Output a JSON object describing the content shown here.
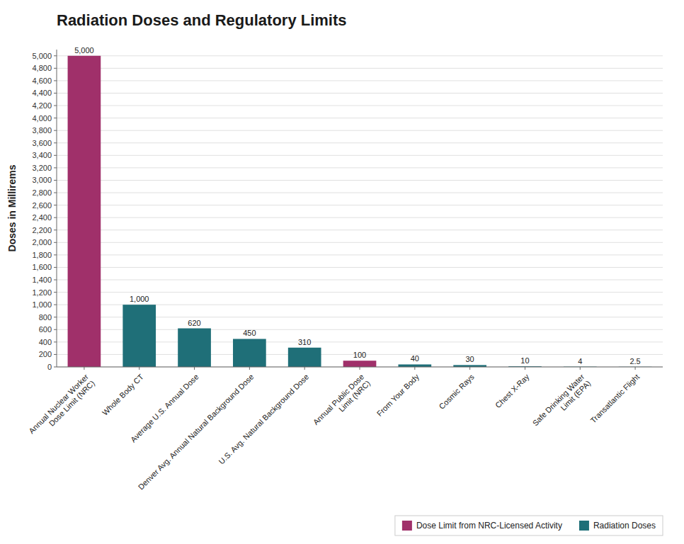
{
  "chart_data": {
    "type": "bar",
    "title": "Radiation Doses and Regulatory Limits",
    "ylabel": "Doses in Millirems",
    "categories": [
      "Annual Nuclear Worker\nDose Limit (NRC)",
      "Whole Body CT",
      "Average U.S. Annual Dose",
      "Denver Avg. Annual Natural Background Dose",
      "U.S. Avg. Natural Background Dose",
      "Annual Public Dose\nLimit (NRC)",
      "From Your Body",
      "Cosmic Rays",
      "Chest X-Ray",
      "Safe Drinking Water\nLimit (EPA)",
      "Transatlantic Flight"
    ],
    "series": [
      {
        "name": "Dose Limit from NRC-Licensed Activity",
        "color": "#a0306a",
        "values": [
          5000,
          null,
          null,
          null,
          null,
          100,
          null,
          null,
          null,
          null,
          null
        ],
        "value_labels": [
          "5,000",
          null,
          null,
          null,
          null,
          "100",
          null,
          null,
          null,
          null,
          null
        ]
      },
      {
        "name": "Radiation Doses",
        "color": "#1f6f78",
        "values": [
          null,
          1000,
          620,
          450,
          310,
          null,
          40,
          30,
          10,
          4,
          2.5
        ],
        "value_labels": [
          null,
          "1,000",
          "620",
          "450",
          "310",
          null,
          "40",
          "30",
          "10",
          "4",
          "2.5"
        ]
      }
    ],
    "stacked": true,
    "data_labels": true,
    "ylim": [
      0,
      5100
    ],
    "yticks": [
      0,
      200,
      400,
      600,
      800,
      {
        "value": 1000,
        "label": "1,000"
      },
      {
        "value": 1200,
        "label": "1,200"
      },
      {
        "value": 1400,
        "label": "1,400"
      },
      {
        "value": 1600,
        "label": "1,600"
      },
      {
        "value": 1800,
        "label": "1,800"
      },
      {
        "value": 2000,
        "label": "2,000"
      },
      {
        "value": 2200,
        "label": "2,200"
      },
      {
        "value": 2400,
        "label": "2,400"
      },
      {
        "value": 2600,
        "label": "2,600"
      },
      {
        "value": 2800,
        "label": "2,800"
      },
      {
        "value": 3000,
        "label": "3,000"
      },
      {
        "value": 3200,
        "label": "3,200"
      },
      {
        "value": 3400,
        "label": "3,400"
      },
      {
        "value": 3600,
        "label": "3,600"
      },
      {
        "value": 3800,
        "label": "3,800"
      },
      {
        "value": 4000,
        "label": "4,000"
      },
      {
        "value": 4200,
        "label": "4,200"
      },
      {
        "value": 4400,
        "label": "4,400"
      },
      {
        "value": 4600,
        "label": "4,600"
      },
      {
        "value": 4800,
        "label": "4,800"
      },
      {
        "value": 5000,
        "label": "5,000"
      }
    ],
    "grid": true,
    "legend": "lower right"
  }
}
